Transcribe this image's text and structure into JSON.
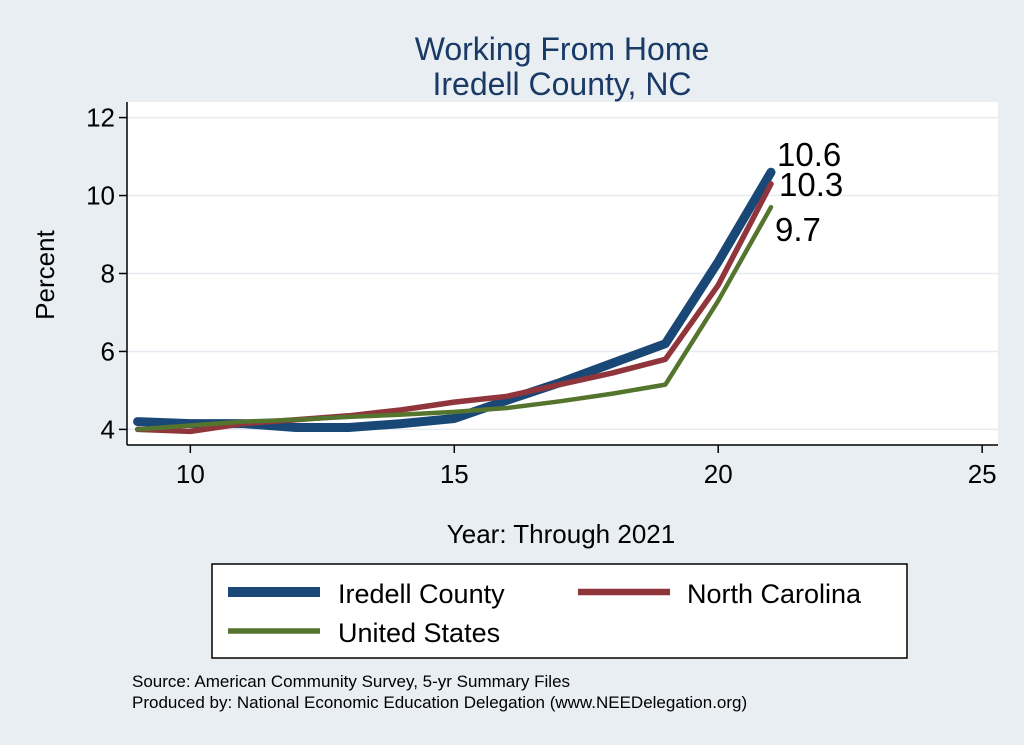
{
  "chart_data": {
    "type": "line",
    "title": "Working From Home",
    "subtitle": "Iredell County, NC",
    "xlabel": "Year: Through 2021",
    "ylabel": "Percent",
    "xlim": [
      8.8,
      25.3
    ],
    "ylim": [
      3.6,
      12.4
    ],
    "xticks": [
      "10",
      "15",
      "20",
      "25"
    ],
    "yticks": [
      "4",
      "6",
      "8",
      "10",
      "12"
    ],
    "grid": true,
    "legend_position": "bottom",
    "series": [
      {
        "name": "Iredell County",
        "color": "#1a4876",
        "x": [
          9,
          10,
          11,
          12,
          13,
          14,
          15,
          16,
          17,
          18,
          19,
          20,
          21
        ],
        "values": [
          4.2,
          4.15,
          4.15,
          4.05,
          4.05,
          4.15,
          4.28,
          4.75,
          5.2,
          5.7,
          6.2,
          8.3,
          10.6
        ],
        "end_label": "10.6"
      },
      {
        "name": "North Carolina",
        "color": "#90353b",
        "x": [
          9,
          10,
          11,
          12,
          13,
          14,
          15,
          16,
          17,
          18,
          19,
          20,
          21
        ],
        "values": [
          4.0,
          3.95,
          4.15,
          4.25,
          4.35,
          4.5,
          4.7,
          4.85,
          5.15,
          5.45,
          5.8,
          7.7,
          10.3
        ],
        "end_label": "10.3"
      },
      {
        "name": "United States",
        "color": "#55752f",
        "x": [
          9,
          10,
          11,
          12,
          13,
          14,
          15,
          16,
          17,
          18,
          19,
          20,
          21
        ],
        "values": [
          4.0,
          4.1,
          4.2,
          4.25,
          4.32,
          4.38,
          4.45,
          4.55,
          4.72,
          4.92,
          5.15,
          7.3,
          9.7
        ],
        "end_label": "9.7"
      }
    ],
    "notes": [
      "Source: American Community Survey, 5-yr Summary Files",
      "Produced by: National Economic Education Delegation (www.NEEDelegation.org)"
    ]
  }
}
